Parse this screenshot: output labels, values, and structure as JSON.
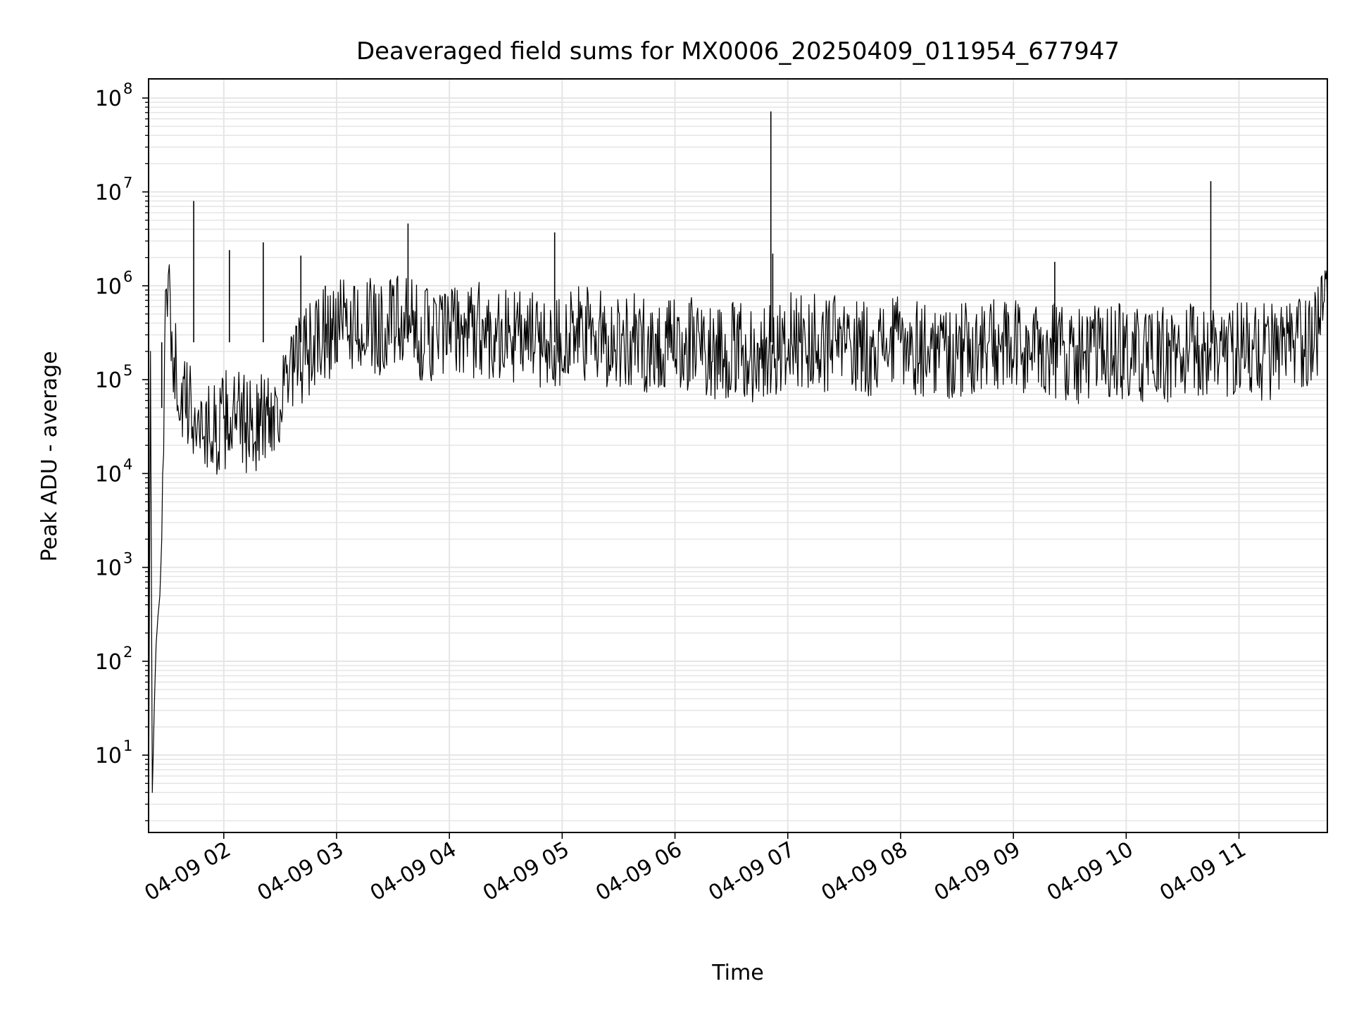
{
  "chart_data": {
    "type": "line",
    "title": "Deaveraged field sums for MX0006_20250409_011954_677947",
    "xlabel": "Time",
    "ylabel": "Peak ADU - average",
    "yscale": "log",
    "ylim": [
      1.5,
      160000000
    ],
    "xlim": [
      "2025-04-09 01:20",
      "2025-04-09 11:47"
    ],
    "grid": true,
    "line_color": "#000000",
    "grid_color": "#e5e5e5",
    "x_ticks": [
      {
        "time": "2025-04-09 02:00",
        "label": "04-09 02"
      },
      {
        "time": "2025-04-09 03:00",
        "label": "04-09 03"
      },
      {
        "time": "2025-04-09 04:00",
        "label": "04-09 04"
      },
      {
        "time": "2025-04-09 05:00",
        "label": "04-09 05"
      },
      {
        "time": "2025-04-09 06:00",
        "label": "04-09 06"
      },
      {
        "time": "2025-04-09 07:00",
        "label": "04-09 07"
      },
      {
        "time": "2025-04-09 08:00",
        "label": "04-09 08"
      },
      {
        "time": "2025-04-09 09:00",
        "label": "04-09 09"
      },
      {
        "time": "2025-04-09 10:00",
        "label": "04-09 10"
      },
      {
        "time": "2025-04-09 11:00",
        "label": "04-09 11"
      }
    ],
    "y_ticks": [
      {
        "value": 10,
        "base": "10",
        "exp": "1"
      },
      {
        "value": 100,
        "base": "10",
        "exp": "2"
      },
      {
        "value": 1000,
        "base": "10",
        "exp": "3"
      },
      {
        "value": 10000,
        "base": "10",
        "exp": "4"
      },
      {
        "value": 100000,
        "base": "10",
        "exp": "5"
      },
      {
        "value": 1000000,
        "base": "10",
        "exp": "6"
      },
      {
        "value": 10000000,
        "base": "10",
        "exp": "7"
      },
      {
        "value": 100000000,
        "base": "10",
        "exp": "8"
      }
    ],
    "series": [
      {
        "x": [
          "2025-04-09 01:20",
          "2025-04-09 01:21",
          "2025-04-09 01:22",
          "2025-04-09 01:23",
          "2025-04-09 01:24",
          "2025-04-09 01:25",
          "2025-04-09 01:26",
          "2025-04-09 01:27",
          "2025-04-09 01:28",
          "2025-04-09 01:29",
          "2025-04-09 01:30",
          "2025-04-09 01:31",
          "2025-04-09 01:32",
          "2025-04-09 01:34",
          "2025-04-09 01:36",
          "2025-04-09 01:38",
          "2025-04-09 01:40",
          "2025-04-09 01:43",
          "2025-04-09 01:45",
          "2025-04-09 01:47",
          "2025-04-09 01:50",
          "2025-04-09 01:52",
          "2025-04-09 01:55",
          "2025-04-09 01:58",
          "2025-04-09 02:02",
          "2025-04-09 02:06",
          "2025-04-09 02:10",
          "2025-04-09 02:14",
          "2025-04-09 02:18",
          "2025-04-09 02:22",
          "2025-04-09 02:26",
          "2025-04-09 02:30",
          "2025-04-09 02:35",
          "2025-04-09 02:40",
          "2025-04-09 02:45",
          "2025-04-09 02:50",
          "2025-04-09 02:55",
          "2025-04-09 03:00",
          "2025-04-09 03:05",
          "2025-04-09 03:10",
          "2025-04-09 03:15",
          "2025-04-09 03:20",
          "2025-04-09 03:25",
          "2025-04-09 03:30",
          "2025-04-09 03:35",
          "2025-04-09 03:40",
          "2025-04-09 03:50",
          "2025-04-09 04:00",
          "2025-04-09 04:10",
          "2025-04-09 04:20",
          "2025-04-09 04:30",
          "2025-04-09 04:40",
          "2025-04-09 04:50",
          "2025-04-09 05:00",
          "2025-04-09 05:10",
          "2025-04-09 05:20",
          "2025-04-09 05:30",
          "2025-04-09 05:40",
          "2025-04-09 05:50",
          "2025-04-09 06:00",
          "2025-04-09 06:10",
          "2025-04-09 06:20",
          "2025-04-09 06:30",
          "2025-04-09 06:40",
          "2025-04-09 06:50",
          "2025-04-09 07:00",
          "2025-04-09 07:10",
          "2025-04-09 07:20",
          "2025-04-09 07:30",
          "2025-04-09 07:40",
          "2025-04-09 07:50",
          "2025-04-09 08:00",
          "2025-04-09 08:10",
          "2025-04-09 08:20",
          "2025-04-09 08:30",
          "2025-04-09 08:40",
          "2025-04-09 08:50",
          "2025-04-09 09:00",
          "2025-04-09 09:10",
          "2025-04-09 09:20",
          "2025-04-09 09:30",
          "2025-04-09 09:40",
          "2025-04-09 09:50",
          "2025-04-09 10:00",
          "2025-04-09 10:10",
          "2025-04-09 10:20",
          "2025-04-09 10:30",
          "2025-04-09 10:40",
          "2025-04-09 10:50",
          "2025-04-09 11:00",
          "2025-04-09 11:10",
          "2025-04-09 11:20",
          "2025-04-09 11:30",
          "2025-04-09 11:40",
          "2025-04-09 11:47"
        ],
        "y": [
          2,
          200000,
          4,
          30,
          150,
          300,
          500,
          2000,
          50000,
          300000,
          600000,
          750000,
          400000,
          150000,
          80000,
          60000,
          50000,
          45000,
          40000,
          35000,
          32000,
          30000,
          28000,
          30000,
          40000,
          38000,
          35000,
          33000,
          35000,
          40000,
          45000,
          60000,
          100000,
          150000,
          200000,
          250000,
          300000,
          350000,
          380000,
          400000,
          380000,
          350000,
          370000,
          400000,
          380000,
          350000,
          300000,
          320000,
          350000,
          330000,
          300000,
          280000,
          250000,
          270000,
          300000,
          280000,
          260000,
          250000,
          230000,
          220000,
          240000,
          210000,
          200000,
          190000,
          200000,
          260000,
          250000,
          240000,
          230000,
          220000,
          230000,
          240000,
          220000,
          210000,
          200000,
          220000,
          230000,
          210000,
          200000,
          220000,
          190000,
          180000,
          200000,
          190000,
          170000,
          180000,
          190000,
          200000,
          210000,
          220000,
          200000,
          190000,
          210000,
          300000,
          600000
        ],
        "spikes": [
          {
            "x": "2025-04-09 01:27",
            "y": 50000
          },
          {
            "x": "2025-04-09 01:44",
            "y": 8000000
          },
          {
            "x": "2025-04-09 02:03",
            "y": 2400000
          },
          {
            "x": "2025-04-09 02:21",
            "y": 2900000
          },
          {
            "x": "2025-04-09 02:41",
            "y": 2100000
          },
          {
            "x": "2025-04-09 02:54",
            "y": 1000000
          },
          {
            "x": "2025-04-09 03:38",
            "y": 4600000
          },
          {
            "x": "2025-04-09 04:56",
            "y": 3700000
          },
          {
            "x": "2025-04-09 06:51",
            "y": 72000000
          },
          {
            "x": "2025-04-09 06:52",
            "y": 2200000
          },
          {
            "x": "2025-04-09 09:22",
            "y": 1800000
          },
          {
            "x": "2025-04-09 10:45",
            "y": 13000000
          }
        ]
      }
    ]
  }
}
